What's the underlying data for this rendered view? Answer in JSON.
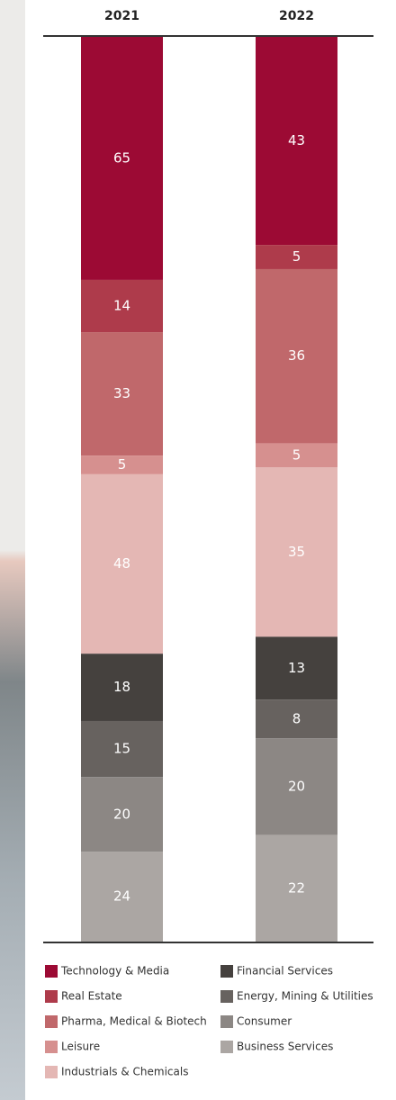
{
  "chart_data": {
    "type": "bar",
    "stacked": true,
    "normalized": true,
    "categories": [
      "2021",
      "2022"
    ],
    "series": [
      {
        "name": "Technology & Media",
        "color": "#9c0a34",
        "values": [
          65,
          43
        ]
      },
      {
        "name": "Real Estate",
        "color": "#ae3b4b",
        "values": [
          14,
          5
        ]
      },
      {
        "name": "Pharma, Medical & Biotech",
        "color": "#c0686b",
        "values": [
          33,
          36
        ]
      },
      {
        "name": "Leisure",
        "color": "#d6908f",
        "values": [
          5,
          5
        ]
      },
      {
        "name": "Industrials & Chemicals",
        "color": "#e4b7b4",
        "values": [
          48,
          35
        ]
      },
      {
        "name": "Financial Services",
        "color": "#45413e",
        "values": [
          18,
          13
        ]
      },
      {
        "name": "Energy, Mining & Utilities",
        "color": "#67625f",
        "values": [
          15,
          8
        ]
      },
      {
        "name": "Consumer",
        "color": "#8c8784",
        "values": [
          20,
          20
        ]
      },
      {
        "name": "Business Services",
        "color": "#aba6a3",
        "values": [
          24,
          22
        ]
      }
    ]
  }
}
